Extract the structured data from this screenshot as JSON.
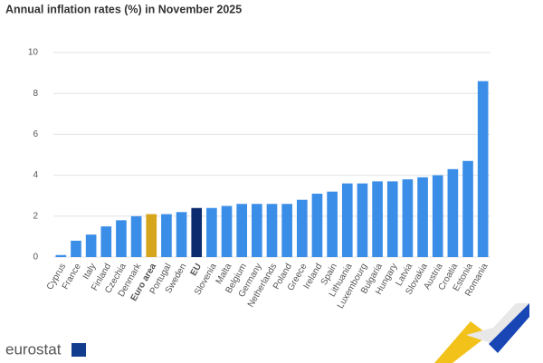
{
  "chart_data": {
    "type": "bar",
    "title": "Annual inflation rates (%) in November 2025",
    "categories": [
      "Cyprus",
      "France",
      "Italy",
      "Finland",
      "Czechia",
      "Denmark",
      "Euro area",
      "Portugal",
      "Sweden",
      "EU",
      "Slovenia",
      "Malta",
      "Belgium",
      "Germany",
      "Netherlands",
      "Poland",
      "Greece",
      "Ireland",
      "Spain",
      "Lithuania",
      "Luxembourg",
      "Bulgaria",
      "Hungary",
      "Latvia",
      "Slovakia",
      "Austria",
      "Croatia",
      "Estonia",
      "Romania"
    ],
    "values": [
      0.1,
      0.8,
      1.1,
      1.5,
      1.8,
      2.0,
      2.1,
      2.1,
      2.2,
      2.4,
      2.4,
      2.5,
      2.6,
      2.6,
      2.6,
      2.6,
      2.8,
      3.1,
      3.2,
      3.6,
      3.6,
      3.7,
      3.7,
      3.8,
      3.9,
      4.0,
      4.3,
      4.7,
      8.6
    ],
    "color": "#3b8ee8",
    "colors": [
      "#3b8ee8",
      "#3b8ee8",
      "#3b8ee8",
      "#3b8ee8",
      "#3b8ee8",
      "#3b8ee8",
      "#d7a51b",
      "#3b8ee8",
      "#3b8ee8",
      "#0c2b6e",
      "#3b8ee8",
      "#3b8ee8",
      "#3b8ee8",
      "#3b8ee8",
      "#3b8ee8",
      "#3b8ee8",
      "#3b8ee8",
      "#3b8ee8",
      "#3b8ee8",
      "#3b8ee8",
      "#3b8ee8",
      "#3b8ee8",
      "#3b8ee8",
      "#3b8ee8",
      "#3b8ee8",
      "#3b8ee8",
      "#3b8ee8",
      "#3b8ee8",
      "#3b8ee8"
    ],
    "ylim": [
      0,
      10
    ],
    "yticks": [
      0,
      2,
      4,
      6,
      8,
      10
    ],
    "grid": true
  },
  "logo": "eurostat"
}
